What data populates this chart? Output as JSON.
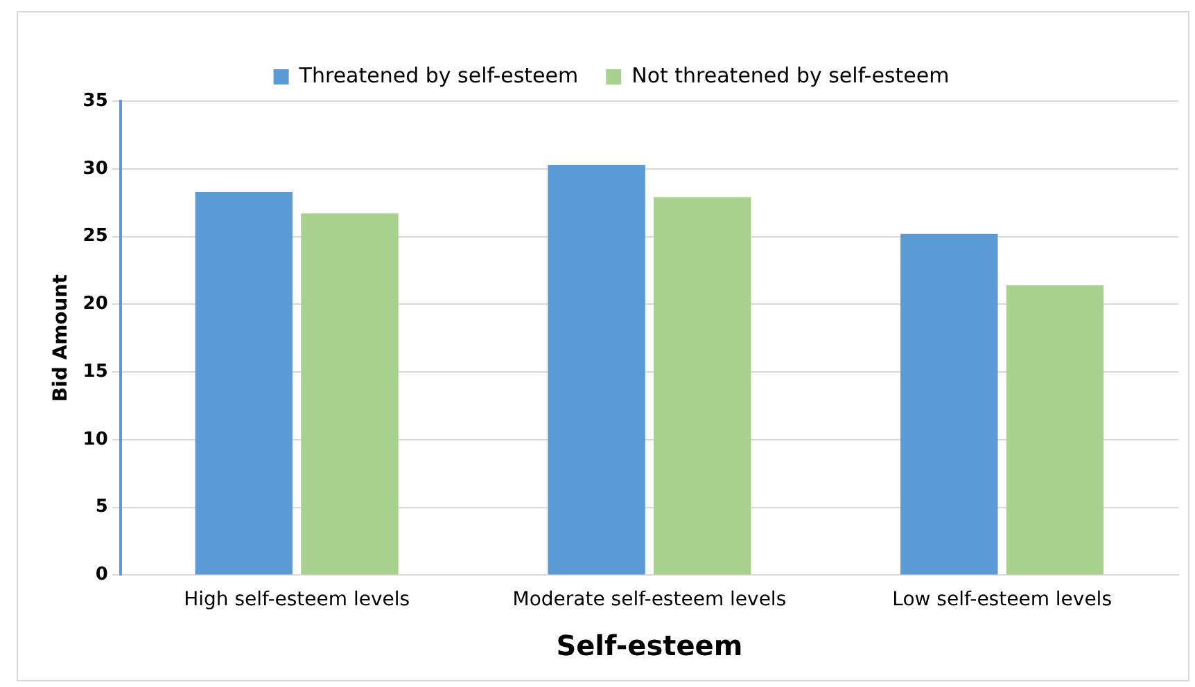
{
  "chart_data": {
    "type": "bar",
    "xlabel": "Self-esteem",
    "ylabel": "Bid Amount",
    "categories": [
      "High self-esteem levels",
      "Moderate self-esteem levels",
      "Low self-esteem levels"
    ],
    "series": [
      {
        "name": "Threatened by self-esteem",
        "color": "#5b9bd5",
        "values": [
          28.3,
          30.3,
          25.2
        ]
      },
      {
        "name": "Not threatened by self-esteem",
        "color": "#a9d18e",
        "values": [
          26.7,
          27.9,
          21.4
        ]
      }
    ],
    "ylim": [
      0,
      35
    ],
    "yticks": [
      0,
      5,
      10,
      15,
      20,
      25,
      30,
      35
    ],
    "grid": "y",
    "legend": "top"
  }
}
